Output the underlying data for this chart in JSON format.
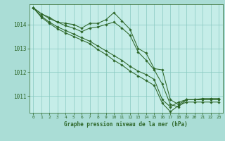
{
  "title": "Graphe pression niveau de la mer (hPa)",
  "background_color": "#aaddd6",
  "plot_bg_color": "#c5ede8",
  "grid_color": "#88c8c0",
  "line_color": "#2d6628",
  "marker_color": "#2d6628",
  "xlim": [
    -0.5,
    23.5
  ],
  "ylim": [
    1010.3,
    1014.85
  ],
  "yticks": [
    1011,
    1012,
    1013,
    1014
  ],
  "xticks": [
    0,
    1,
    2,
    3,
    4,
    5,
    6,
    7,
    8,
    9,
    10,
    11,
    12,
    13,
    14,
    15,
    16,
    17,
    18,
    19,
    20,
    21,
    22,
    23
  ],
  "series": [
    [
      1014.7,
      1014.45,
      1014.3,
      1014.1,
      1014.05,
      1014.0,
      1013.85,
      1014.05,
      1014.05,
      1014.2,
      1014.5,
      1014.15,
      1013.8,
      1013.0,
      1012.8,
      1012.15,
      1012.1,
      1010.85,
      1010.65,
      1010.85,
      1010.85,
      1010.9,
      1010.9,
      1010.9
    ],
    [
      1014.7,
      1014.45,
      1014.25,
      1014.1,
      1013.95,
      1013.85,
      1013.7,
      1013.85,
      1013.9,
      1014.0,
      1014.1,
      1013.85,
      1013.55,
      1012.85,
      1012.5,
      1012.1,
      1011.5,
      1010.65,
      1010.55,
      1010.85,
      1010.85,
      1010.85,
      1010.85,
      1010.85
    ],
    [
      1014.7,
      1014.35,
      1014.1,
      1013.9,
      1013.75,
      1013.6,
      1013.45,
      1013.3,
      1013.1,
      1012.9,
      1012.7,
      1012.5,
      1012.25,
      1012.05,
      1011.9,
      1011.7,
      1010.85,
      1010.55,
      1010.75,
      1010.85,
      1010.85,
      1010.85,
      1010.85,
      1010.85
    ],
    [
      1014.7,
      1014.3,
      1014.05,
      1013.82,
      1013.65,
      1013.5,
      1013.35,
      1013.2,
      1012.95,
      1012.75,
      1012.5,
      1012.3,
      1012.05,
      1011.85,
      1011.65,
      1011.45,
      1010.7,
      1010.35,
      1010.6,
      1010.75,
      1010.75,
      1010.75,
      1010.75,
      1010.75
    ]
  ]
}
